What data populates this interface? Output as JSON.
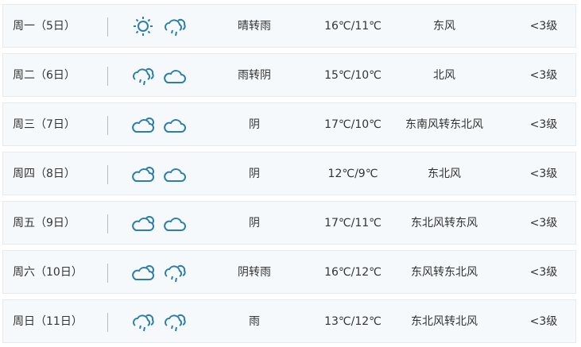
{
  "accent_color": "#e5792a",
  "icon_color": "#2d7ea8",
  "days": [
    {
      "date": "周一（5日）",
      "icons": [
        "sun-icon",
        "rain-icon"
      ],
      "desc": "晴转雨",
      "high": "16℃",
      "low": "/11℃",
      "wind": "东风",
      "level": "<3级"
    },
    {
      "date": "周二（6日）",
      "icons": [
        "rain-icon",
        "cloud-moon-icon"
      ],
      "desc": "雨转阴",
      "high": "15℃",
      "low": "/10℃",
      "wind": "北风",
      "level": "<3级"
    },
    {
      "date": "周三（7日）",
      "icons": [
        "cloud-icon",
        "cloud-moon-icon"
      ],
      "desc": "阴",
      "high": "17℃",
      "low": "/10℃",
      "wind": "东南风转东北风",
      "level": "<3级"
    },
    {
      "date": "周四（8日）",
      "icons": [
        "cloud-icon",
        "cloud-moon-icon"
      ],
      "desc": "阴",
      "high": "12℃",
      "low": "/9℃",
      "wind": "东北风",
      "level": "<3级"
    },
    {
      "date": "周五（9日）",
      "icons": [
        "cloud-icon",
        "cloud-moon-icon"
      ],
      "desc": "阴",
      "high": "17℃",
      "low": "/11℃",
      "wind": "东北风转东风",
      "level": "<3级"
    },
    {
      "date": "周六（10日）",
      "icons": [
        "cloud-icon",
        "rain-icon"
      ],
      "desc": "阴转雨",
      "high": "16℃",
      "low": "/12℃",
      "wind": "东风转东北风",
      "level": "<3级"
    },
    {
      "date": "周日（11日）",
      "icons": [
        "rain-icon",
        "rain-icon"
      ],
      "desc": "雨",
      "high": "13℃",
      "low": "/12℃",
      "wind": "东北风转北风",
      "level": "<3级"
    }
  ]
}
